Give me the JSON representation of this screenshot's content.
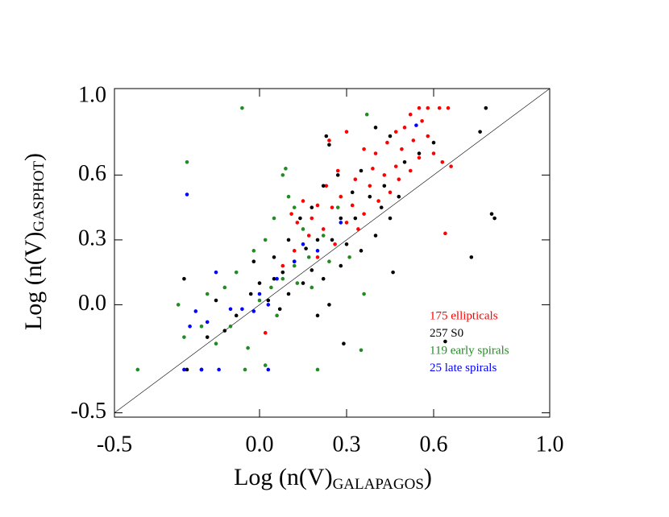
{
  "chart_data": {
    "type": "scatter",
    "x_label": {
      "main": "Log (n(V)",
      "sub": "GALAPAGOS",
      "end": ")"
    },
    "y_label": {
      "main": "Log (n(V)",
      "sub": "GASPHOT",
      "end": ")"
    },
    "xlim": [
      -0.5,
      1.0
    ],
    "ylim": [
      -0.52,
      1.0
    ],
    "xticks": [
      -0.5,
      {
        "value": 0,
        "label": "0.0"
      },
      0.3,
      0.6,
      {
        "value": 1,
        "label": "1.0"
      }
    ],
    "yticks": [
      -0.5,
      {
        "value": 0,
        "label": "0.0"
      },
      0.3,
      0.6,
      {
        "value": 1,
        "label": "1.0"
      }
    ],
    "diagonal": true,
    "legend": "lower right",
    "series": [
      {
        "name": "175 ellipticals",
        "color": "#ff0000",
        "x": [
          0.55,
          0.58,
          0.62,
          0.65,
          0.52,
          0.56,
          0.5,
          0.47,
          0.53,
          0.58,
          0.6,
          0.63,
          0.66,
          0.49,
          0.44,
          0.4,
          0.36,
          0.3,
          0.24,
          0.52,
          0.47,
          0.43,
          0.38,
          0.33,
          0.28,
          0.25,
          0.2,
          0.15,
          0.41,
          0.36,
          0.3,
          0.22,
          0.17,
          0.12,
          0.26,
          0.2,
          0.08,
          0.64,
          0.02,
          0.45,
          0.55,
          0.32,
          0.13,
          0.18,
          0.48,
          0.39,
          0.27,
          0.34,
          0.23,
          0.11
        ],
        "y": [
          0.91,
          0.91,
          0.91,
          0.91,
          0.88,
          0.85,
          0.82,
          0.8,
          0.76,
          0.78,
          0.7,
          0.66,
          0.64,
          0.72,
          0.75,
          0.7,
          0.72,
          0.8,
          0.76,
          0.62,
          0.64,
          0.6,
          0.55,
          0.58,
          0.5,
          0.45,
          0.46,
          0.48,
          0.48,
          0.42,
          0.38,
          0.35,
          0.32,
          0.25,
          0.28,
          0.22,
          0.18,
          0.33,
          -0.13,
          0.52,
          0.68,
          0.46,
          0.38,
          0.4,
          0.58,
          0.63,
          0.62,
          0.35,
          0.55,
          0.42
        ]
      },
      {
        "name": "257 S0",
        "color": "#000000",
        "x": [
          0.78,
          0.76,
          0.8,
          0.81,
          0.73,
          0.64,
          0.46,
          0.29,
          0.23,
          0.24,
          0.4,
          0.45,
          0.55,
          0.5,
          0.43,
          0.38,
          0.32,
          0.27,
          0.22,
          0.18,
          0.14,
          0.2,
          0.25,
          0.3,
          0.35,
          0.4,
          0.45,
          0.12,
          0.08,
          0.05,
          0.0,
          0.03,
          0.07,
          0.1,
          0.15,
          0.18,
          0.22,
          0.28,
          0.24,
          0.2,
          -0.03,
          -0.08,
          -0.12,
          -0.18,
          -0.2,
          -0.25,
          -0.26,
          -0.15,
          0.6,
          0.35,
          0.16,
          0.1,
          0.33,
          0.42,
          0.05,
          -0.02,
          0.48,
          0.28
        ],
        "y": [
          0.91,
          0.8,
          0.42,
          0.4,
          0.22,
          -0.17,
          0.15,
          -0.18,
          0.78,
          0.74,
          0.82,
          0.78,
          0.7,
          0.66,
          0.55,
          0.5,
          0.52,
          0.6,
          0.55,
          0.45,
          0.4,
          0.3,
          0.3,
          0.28,
          0.25,
          0.32,
          0.4,
          0.2,
          0.15,
          0.12,
          0.1,
          0.02,
          -0.02,
          0.05,
          0.1,
          0.16,
          0.12,
          0.18,
          0.0,
          -0.05,
          0.05,
          -0.05,
          -0.12,
          -0.15,
          -0.3,
          -0.3,
          0.12,
          0.02,
          0.75,
          0.62,
          0.26,
          0.3,
          0.4,
          0.45,
          0.22,
          0.2,
          0.5,
          0.4
        ]
      },
      {
        "name": "119 early spirals",
        "color": "#228b22",
        "x": [
          -0.42,
          -0.25,
          -0.06,
          0.37,
          0.35,
          0.09,
          0.08,
          0.12,
          0.05,
          0.2,
          0.02,
          -0.05,
          -0.1,
          -0.15,
          -0.2,
          -0.26,
          -0.28,
          -0.18,
          -0.08,
          -0.02,
          0.0,
          0.04,
          0.08,
          0.12,
          0.17,
          0.22,
          0.27,
          0.31,
          0.36,
          0.15,
          0.13,
          0.18,
          0.06,
          -0.12,
          0.1,
          0.24,
          0.02,
          -0.04
        ],
        "y": [
          -0.3,
          0.66,
          0.91,
          0.88,
          -0.21,
          0.63,
          0.6,
          0.45,
          0.4,
          -0.3,
          -0.28,
          -0.3,
          -0.1,
          -0.18,
          -0.1,
          -0.15,
          0.0,
          0.05,
          0.15,
          0.25,
          0.02,
          0.08,
          0.12,
          0.18,
          0.22,
          0.32,
          0.45,
          0.22,
          0.05,
          0.35,
          0.1,
          0.08,
          -0.05,
          0.08,
          0.5,
          0.2,
          0.3,
          -0.2
        ]
      },
      {
        "name": "25 late spirals",
        "color": "#0000ff",
        "x": [
          -0.25,
          0.54,
          -0.15,
          -0.22,
          -0.24,
          -0.26,
          -0.2,
          -0.14,
          -0.18,
          0.03,
          -0.02,
          0.0,
          0.06,
          0.12,
          0.15,
          0.2,
          0.28,
          -0.1,
          0.03,
          -0.06
        ],
        "y": [
          0.51,
          0.83,
          0.15,
          -0.03,
          -0.1,
          -0.3,
          -0.3,
          -0.3,
          -0.08,
          -0.3,
          -0.03,
          0.05,
          0.12,
          0.2,
          0.28,
          0.25,
          0.38,
          -0.02,
          0.0,
          -0.02
        ]
      }
    ]
  }
}
